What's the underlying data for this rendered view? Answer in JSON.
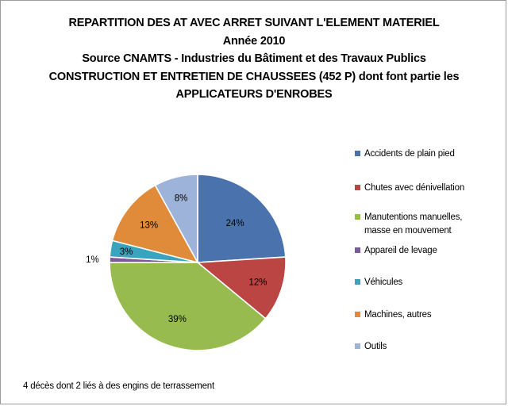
{
  "chart_data": {
    "type": "pie",
    "title_lines": [
      "REPARTITION DES AT AVEC ARRET SUIVANT L'ELEMENT MATERIEL",
      "Année 2010",
      "Source CNAMTS - Industries du Bâtiment et des Travaux Publics",
      "CONSTRUCTION ET ENTRETIEN DE CHAUSSEES (452 P) dont font partie les",
      "APPLICATEURS D'ENROBES"
    ],
    "categories": [
      "Accidents de plain pied",
      "Chutes avec dénivellation",
      "Manutentions manuelles, masse en mouvement",
      "Appareil de levage",
      "Véhicules",
      "Machines, autres",
      "Outils"
    ],
    "legend_labels": [
      [
        "Accidents de plain pied"
      ],
      [
        "Chutes avec dénivellation"
      ],
      [
        "Manutentions manuelles,",
        "masse en mouvement"
      ],
      [
        "Appareil de levage"
      ],
      [
        "Véhicules"
      ],
      [
        "Machines, autres"
      ],
      [
        "Outils"
      ]
    ],
    "values": [
      24,
      12,
      39,
      1,
      3,
      13,
      8
    ],
    "data_labels": [
      "24%",
      "12%",
      "39%",
      "1%",
      "3%",
      "13%",
      "8%"
    ],
    "colors": [
      "#4a73ae",
      "#bb4543",
      "#98bb4f",
      "#7b5a9a",
      "#3aa3bd",
      "#e08b3a",
      "#9db3da"
    ],
    "legend_position": "right",
    "start_angle": "12 o'clock, clockwise",
    "footnote": "4 décès dont 2 liés à des engins de terrassement"
  }
}
